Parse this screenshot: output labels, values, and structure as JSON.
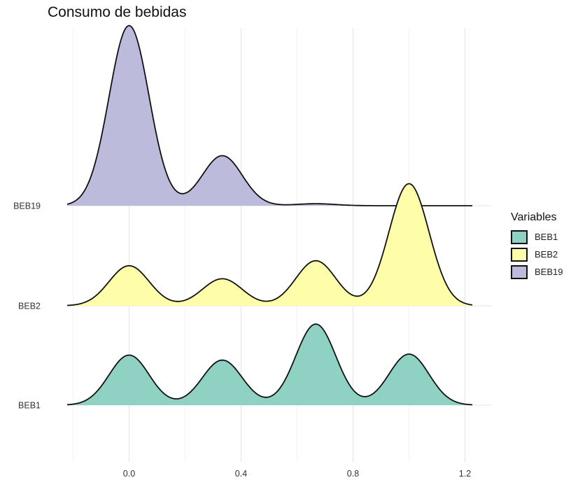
{
  "chart_data": {
    "type": "ridgeline",
    "title": "Consumo de bebidas",
    "x_ticks": [
      "0.0",
      "0.4",
      "0.8",
      "1.2"
    ],
    "xlim": [
      -0.22,
      1.22
    ],
    "series": [
      {
        "name": "BEB1",
        "color": "#8fd2c4",
        "peaks": [
          {
            "x": 0.0,
            "height": 0.5
          },
          {
            "x": 0.333,
            "height": 0.45
          },
          {
            "x": 0.667,
            "height": 0.81
          },
          {
            "x": 1.0,
            "height": 0.51
          }
        ]
      },
      {
        "name": "BEB2",
        "color": "#fdfdaa",
        "peaks": [
          {
            "x": 0.0,
            "height": 0.4
          },
          {
            "x": 0.333,
            "height": 0.27
          },
          {
            "x": 0.667,
            "height": 0.45
          },
          {
            "x": 1.0,
            "height": 1.22
          }
        ]
      },
      {
        "name": "BEB19",
        "color": "#bcbbdb",
        "peaks": [
          {
            "x": 0.0,
            "height": 1.8
          },
          {
            "x": 0.333,
            "height": 0.5
          },
          {
            "x": 0.667,
            "height": 0.02
          }
        ]
      }
    ]
  },
  "legend": {
    "title": "Variables",
    "items": [
      {
        "label": "BEB1",
        "color": "#8fd2c4"
      },
      {
        "label": "BEB2",
        "color": "#fdfdaa"
      },
      {
        "label": "BEB19",
        "color": "#bcbbdb"
      }
    ]
  }
}
